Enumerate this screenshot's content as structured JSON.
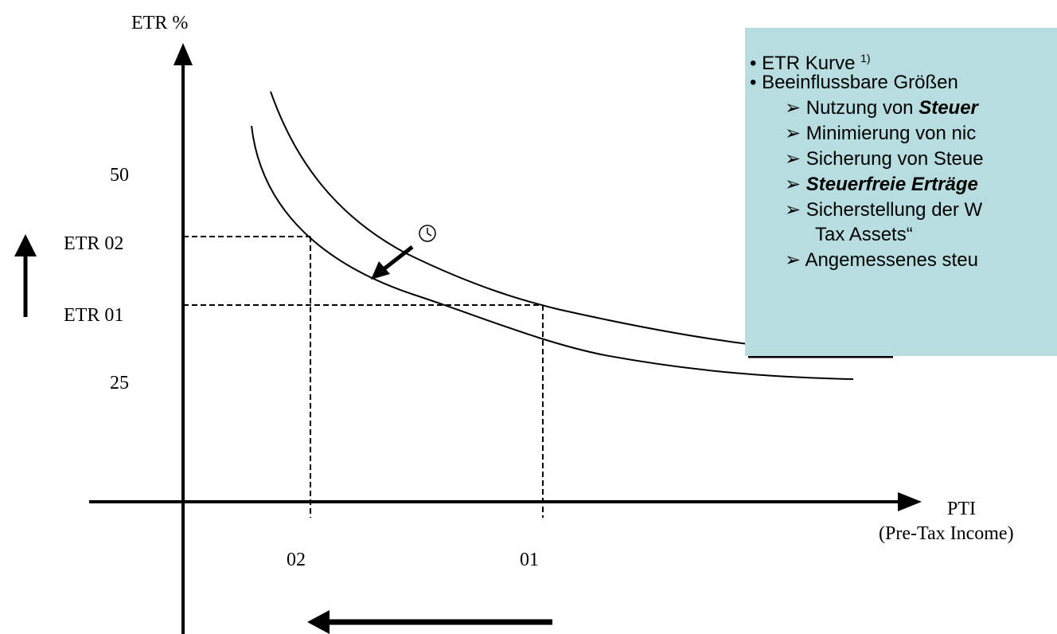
{
  "axes": {
    "y_title": "ETR %",
    "x_title": "PTI",
    "x_subtitle": "(Pre-Tax Income)",
    "y_ticks": [
      "50",
      "ETR 02",
      "ETR 01",
      "25"
    ],
    "x_ticks": [
      "02",
      "01"
    ]
  },
  "info_box": {
    "bullet1": "• ETR Kurve ",
    "bullet1_sup": "1)",
    "bullet2": "• Beeinflussbare Größen",
    "sub1_prefix": "➢ Nutzung von ",
    "sub1_em": "Steuer",
    "sub2": "➢ Minimierung von nic",
    "sub3": "➢ Sicherung von Steue",
    "sub4_em": "➢ Steuerfreie Erträge",
    "sub5": "➢ Sicherstellung der W",
    "sub5_cont": "Tax Assets“",
    "sub6": "➢ Angemessenes steu"
  },
  "icons": {
    "clock": "clock-icon",
    "up_arrow": "up-arrow-icon",
    "left_arrow": "left-arrow-icon",
    "shift_arrow": "diagonal-arrow-icon"
  },
  "colors": {
    "box_background": "#b7dde0",
    "line": "#000000"
  }
}
